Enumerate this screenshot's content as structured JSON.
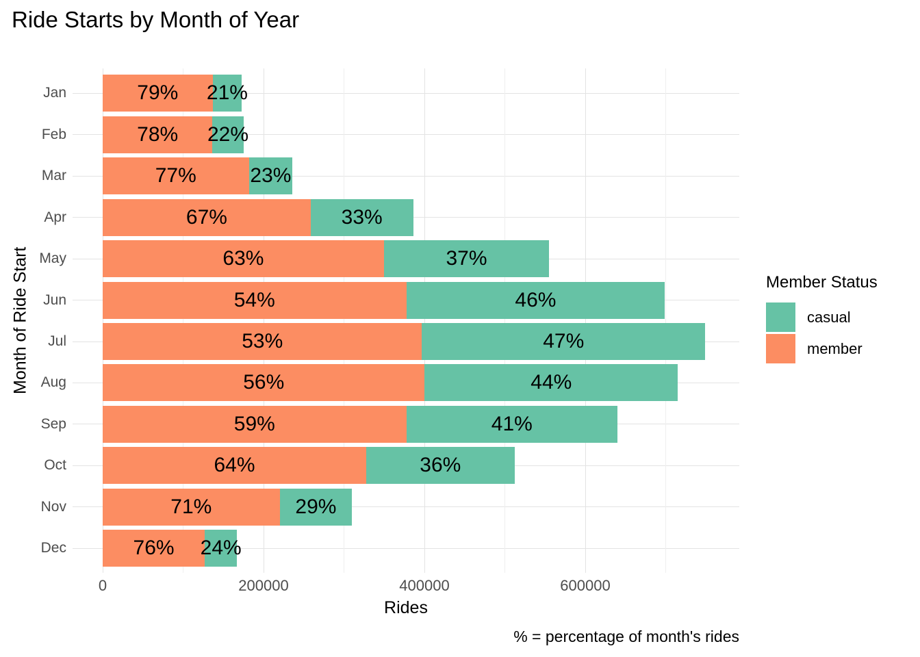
{
  "title": "Ride Starts by Month of Year",
  "colors": {
    "casual": "#66C2A5",
    "member": "#FC8D62",
    "grid_major": "#e3e3e3",
    "grid_minor": "#efefef",
    "axis_text": "#4d4d4d",
    "text": "#000000",
    "background": "#ffffff"
  },
  "chart_data": {
    "type": "bar",
    "orientation": "horizontal",
    "stacked": true,
    "title": "Ride Starts by Month of Year",
    "xlabel": "Rides",
    "ylabel": "Month of Ride Start",
    "caption": "% = percentage of month's rides",
    "grid": true,
    "legend": {
      "title": "Member Status",
      "position": "right",
      "entries": [
        {
          "name": "casual",
          "color": "#66C2A5"
        },
        {
          "name": "member",
          "color": "#FC8D62"
        }
      ]
    },
    "x_axis": {
      "range": [
        0,
        790000
      ],
      "ticks": [
        {
          "value": 0,
          "label": "0"
        },
        {
          "value": 200000,
          "label": "200000"
        },
        {
          "value": 400000,
          "label": "400000"
        },
        {
          "value": 600000,
          "label": "600000"
        }
      ],
      "minor_ticks": [
        100000,
        300000,
        500000,
        700000
      ]
    },
    "categories": [
      "Jan",
      "Feb",
      "Mar",
      "Apr",
      "May",
      "Jun",
      "Jul",
      "Aug",
      "Sep",
      "Oct",
      "Nov",
      "Dec"
    ],
    "stack_order": [
      "member",
      "casual"
    ],
    "rows": [
      {
        "month": "Jan",
        "total_rides_est": 173000,
        "member_pct": 79,
        "casual_pct": 21
      },
      {
        "month": "Feb",
        "total_rides_est": 175000,
        "member_pct": 78,
        "casual_pct": 22
      },
      {
        "month": "Mar",
        "total_rides_est": 236000,
        "member_pct": 77,
        "casual_pct": 23
      },
      {
        "month": "Apr",
        "total_rides_est": 386000,
        "member_pct": 67,
        "casual_pct": 33
      },
      {
        "month": "May",
        "total_rides_est": 555000,
        "member_pct": 63,
        "casual_pct": 37
      },
      {
        "month": "Jun",
        "total_rides_est": 699000,
        "member_pct": 54,
        "casual_pct": 46
      },
      {
        "month": "Jul",
        "total_rides_est": 749000,
        "member_pct": 53,
        "casual_pct": 47
      },
      {
        "month": "Aug",
        "total_rides_est": 715000,
        "member_pct": 56,
        "casual_pct": 44
      },
      {
        "month": "Sep",
        "total_rides_est": 640000,
        "member_pct": 59,
        "casual_pct": 41
      },
      {
        "month": "Oct",
        "total_rides_est": 512000,
        "member_pct": 64,
        "casual_pct": 36
      },
      {
        "month": "Nov",
        "total_rides_est": 310000,
        "member_pct": 71,
        "casual_pct": 29
      },
      {
        "month": "Dec",
        "total_rides_est": 167000,
        "member_pct": 76,
        "casual_pct": 24
      }
    ]
  }
}
